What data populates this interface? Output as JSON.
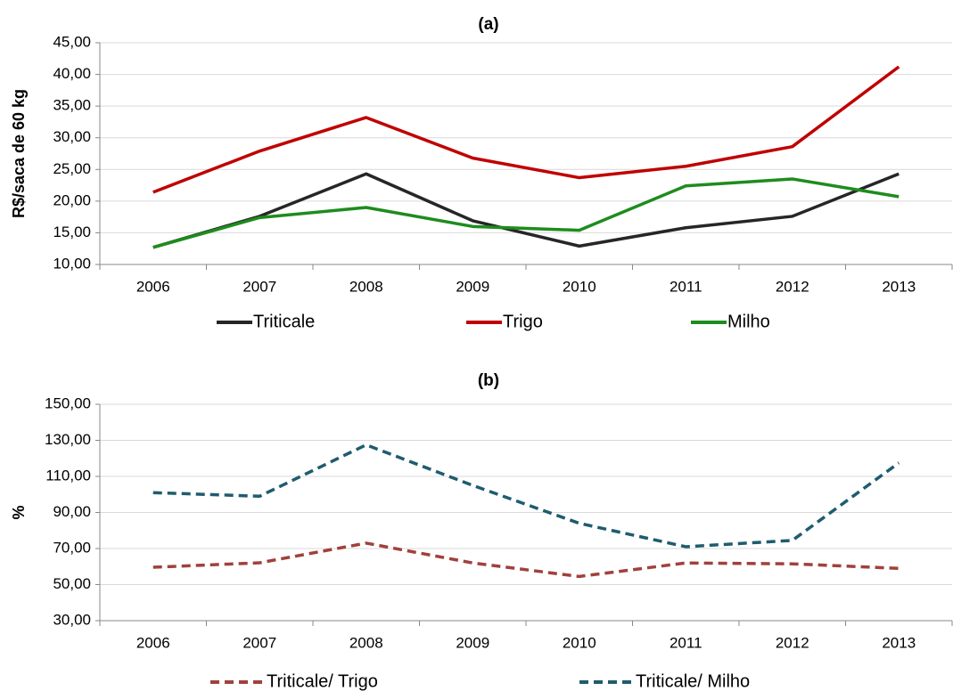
{
  "chart_data": [
    {
      "type": "line",
      "title": "(a)",
      "y_label": "R$/saca de 60 kg",
      "categories": [
        "2006",
        "2007",
        "2008",
        "2009",
        "2010",
        "2011",
        "2012",
        "2013"
      ],
      "series": [
        {
          "name": "Triticale",
          "color": "#262626",
          "dashed": false,
          "values": [
            12.7,
            17.6,
            24.3,
            16.9,
            12.9,
            15.8,
            17.6,
            24.3
          ]
        },
        {
          "name": "Trigo",
          "color": "#c00000",
          "dashed": false,
          "values": [
            21.4,
            27.9,
            33.2,
            26.8,
            23.7,
            25.5,
            28.6,
            41.2
          ]
        },
        {
          "name": "Milho",
          "color": "#1e8c1e",
          "dashed": false,
          "values": [
            12.7,
            17.4,
            19.0,
            16.0,
            15.4,
            22.4,
            23.5,
            20.7
          ]
        }
      ],
      "ylim": [
        10,
        45
      ],
      "yticks": [
        {
          "value": 10,
          "label": "10,00"
        },
        {
          "value": 15,
          "label": "15,00"
        },
        {
          "value": 20,
          "label": "20,00"
        },
        {
          "value": 25,
          "label": "25,00"
        },
        {
          "value": 30,
          "label": "30,00"
        },
        {
          "value": 35,
          "label": "35,00"
        },
        {
          "value": 40,
          "label": "40,00"
        },
        {
          "value": 45,
          "label": "45,00"
        }
      ],
      "grid": true,
      "legend": "bottom"
    },
    {
      "type": "line",
      "title": "(b)",
      "y_label": "%",
      "categories": [
        "2006",
        "2007",
        "2008",
        "2009",
        "2010",
        "2011",
        "2012",
        "2013"
      ],
      "series": [
        {
          "name": "Triticale/ Trigo",
          "color": "#a0413c",
          "dashed": true,
          "values": [
            59.6,
            62.1,
            73.0,
            62.0,
            54.5,
            62.0,
            61.5,
            59.0
          ]
        },
        {
          "name": "Triticale/ Milho",
          "color": "#1f5c6e",
          "dashed": true,
          "values": [
            101.0,
            99.0,
            127.5,
            105.0,
            84.0,
            71.0,
            74.5,
            117.5
          ]
        }
      ],
      "ylim": [
        30,
        150
      ],
      "yticks": [
        {
          "value": 30,
          "label": "30,00"
        },
        {
          "value": 50,
          "label": "50,00"
        },
        {
          "value": 70,
          "label": "70,00"
        },
        {
          "value": 90,
          "label": "90,00"
        },
        {
          "value": 110,
          "label": "110,00"
        },
        {
          "value": 130,
          "label": "130,00"
        },
        {
          "value": 150,
          "label": "150,00"
        }
      ],
      "grid": true,
      "legend": "bottom"
    }
  ]
}
